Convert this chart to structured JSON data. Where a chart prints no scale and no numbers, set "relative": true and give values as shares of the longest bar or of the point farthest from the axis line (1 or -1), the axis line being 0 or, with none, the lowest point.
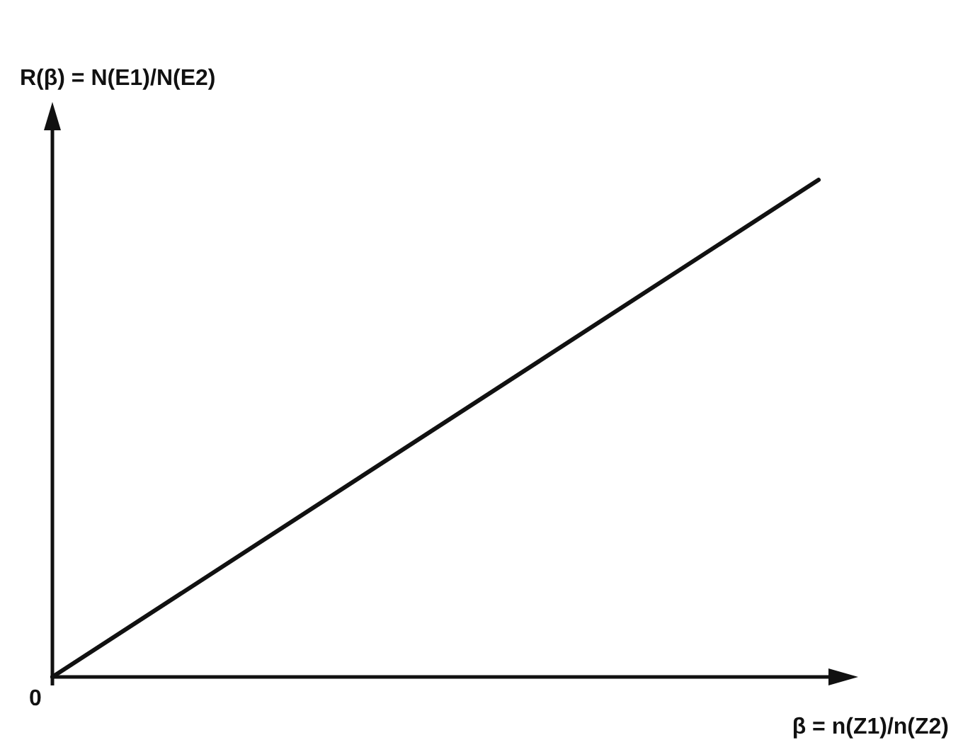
{
  "chart_data": {
    "type": "line",
    "relative": true,
    "categories": [
      null,
      null
    ],
    "series": [
      {
        "color": "#111111",
        "values": [
          0,
          1
        ]
      }
    ],
    "ylabel": "R(β) = N(E1)/N(E2)",
    "xlabel": "β = n(Z1)/n(Z2)",
    "annotations": [
      "0"
    ]
  }
}
